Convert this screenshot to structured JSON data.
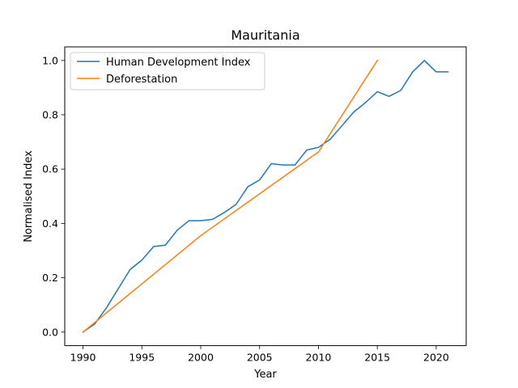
{
  "chart_data": {
    "type": "line",
    "title": "Mauritania",
    "xlabel": "Year",
    "ylabel": "Normalised Index",
    "xlim": [
      1988.45,
      2022.55
    ],
    "ylim": [
      -0.05,
      1.05
    ],
    "xticks": [
      1990,
      1995,
      2000,
      2005,
      2010,
      2015,
      2020
    ],
    "yticks": [
      0.0,
      0.2,
      0.4,
      0.6,
      0.8,
      1.0
    ],
    "xtick_labels": [
      "1990",
      "1995",
      "2000",
      "2005",
      "2010",
      "2015",
      "2020"
    ],
    "ytick_labels": [
      "0.0",
      "0.2",
      "0.4",
      "0.6",
      "0.8",
      "1.0"
    ],
    "legend_position": "top-left",
    "grid": false,
    "series": [
      {
        "name": "Human Development Index",
        "color": "#1f77b4",
        "x": [
          1990,
          1991,
          1992,
          1993,
          1994,
          1995,
          1996,
          1997,
          1998,
          1999,
          2000,
          2001,
          2002,
          2003,
          2004,
          2005,
          2006,
          2007,
          2008,
          2009,
          2010,
          2011,
          2012,
          2013,
          2014,
          2015,
          2016,
          2017,
          2018,
          2019,
          2020,
          2021
        ],
        "y": [
          0.0,
          0.03,
          0.09,
          0.16,
          0.23,
          0.265,
          0.315,
          0.32,
          0.375,
          0.41,
          0.41,
          0.415,
          0.44,
          0.47,
          0.535,
          0.56,
          0.62,
          0.615,
          0.615,
          0.67,
          0.68,
          0.71,
          0.76,
          0.81,
          0.845,
          0.885,
          0.868,
          0.89,
          0.958,
          1.0,
          0.958,
          0.958
        ]
      },
      {
        "name": "Deforestation",
        "color": "#ff7f0e",
        "x": [
          1990,
          2000,
          2010,
          2015
        ],
        "y": [
          0.0,
          0.355,
          0.663,
          1.0
        ]
      }
    ]
  }
}
